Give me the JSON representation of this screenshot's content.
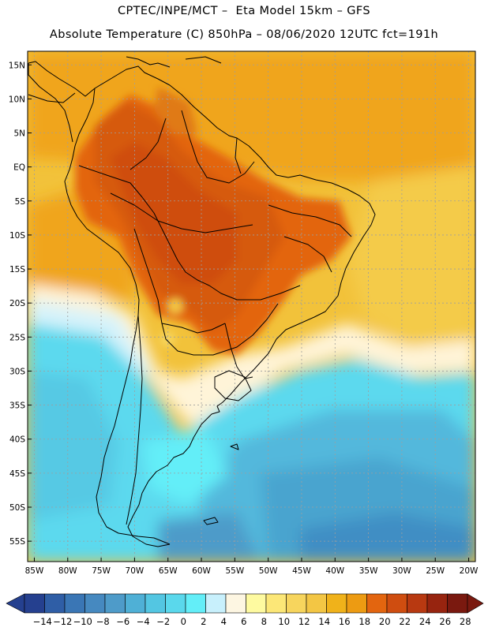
{
  "header": {
    "line1": "CPTEC/INPE/MCT –  Eta Model 15km – GFS",
    "line2": "Absolute Temperature (C) 850hPa – 08/06/2020 12UTC fct=191h"
  },
  "map": {
    "lat_labels": [
      "15N",
      "10N",
      "5N",
      "EQ",
      "5S",
      "10S",
      "15S",
      "20S",
      "25S",
      "30S",
      "35S",
      "40S",
      "45S",
      "50S",
      "55S"
    ],
    "lat_values": [
      15,
      10,
      5,
      0,
      -5,
      -10,
      -15,
      -20,
      -25,
      -30,
      -35,
      -40,
      -45,
      -50,
      -55
    ],
    "lon_labels": [
      "85W",
      "80W",
      "75W",
      "70W",
      "65W",
      "60W",
      "55W",
      "50W",
      "45W",
      "40W",
      "35W",
      "30W",
      "25W",
      "20W"
    ],
    "lon_values": [
      -85,
      -80,
      -75,
      -70,
      -65,
      -60,
      -55,
      -50,
      -45,
      -40,
      -35,
      -30,
      -25,
      -20
    ],
    "lat_range": [
      -58,
      17
    ],
    "lon_range": [
      -86,
      -19
    ]
  },
  "colorbar": {
    "labels": [
      "-14",
      "-12",
      "-10",
      "-8",
      "-6",
      "-4",
      "-2",
      "0",
      "2",
      "4",
      "6",
      "8",
      "10",
      "12",
      "14",
      "16",
      "18",
      "20",
      "22",
      "24",
      "26",
      "28"
    ],
    "colors": [
      "#25408f",
      "#2f5ea6",
      "#3a76b5",
      "#4689c0",
      "#4e9bc9",
      "#4fb0d6",
      "#53c6e2",
      "#5ad8ec",
      "#63eef8",
      "#c8f0fc",
      "#fdf6e2",
      "#fefaa0",
      "#fce777",
      "#f7d55d",
      "#f3c644",
      "#f0b21a",
      "#ed9b12",
      "#e3650f",
      "#cf4d10",
      "#b83911",
      "#97240f",
      "#7a190f"
    ]
  }
}
